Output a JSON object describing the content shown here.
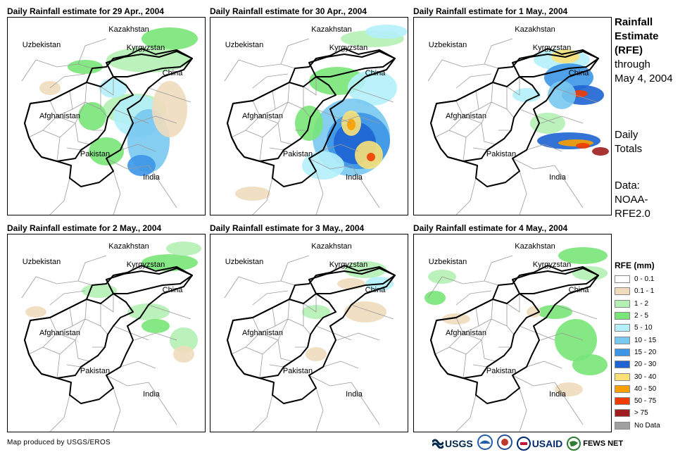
{
  "panels": [
    {
      "title": "Daily Rainfall estimate for 29 Apr., 2004"
    },
    {
      "title": "Daily Rainfall estimate for 30 Apr., 2004"
    },
    {
      "title": "Daily Rainfall estimate for 1 May., 2004"
    },
    {
      "title": "Daily Rainfall estimate for 2 May., 2004"
    },
    {
      "title": "Daily Rainfall estimate for 3 May., 2004"
    },
    {
      "title": "Daily Rainfall estimate for 4 May., 2004"
    }
  ],
  "places": {
    "kazakhstan": "Kazakhstan",
    "uzbekistan": "Uzbekistan",
    "kyrgyzstan": "Kyrgyzstan",
    "china": "China",
    "afghanistan": "Afghanistan",
    "pakistan": "Pakistan",
    "india": "India"
  },
  "side": {
    "line1": "Rainfall",
    "line2": "Estimate",
    "line3": "(RFE)",
    "line4": "through",
    "line5": "May 4, 2004",
    "daily1": "Daily",
    "daily2": "Totals",
    "data1": "Data:",
    "data2": "NOAA-",
    "data3": "RFE2.0"
  },
  "legend": {
    "title": "RFE (mm)",
    "items": [
      {
        "label": "0 - 0.1",
        "color": "#ffffff"
      },
      {
        "label": "0.1 - 1",
        "color": "#f0dcbc"
      },
      {
        "label": "1 - 2",
        "color": "#b4f0b4"
      },
      {
        "label": "2 - 5",
        "color": "#78e678"
      },
      {
        "label": "5 - 10",
        "color": "#b4f0fa"
      },
      {
        "label": "10 - 15",
        "color": "#78c8f0"
      },
      {
        "label": "15 - 20",
        "color": "#3c96e6"
      },
      {
        "label": "20 - 30",
        "color": "#1e64d2"
      },
      {
        "label": "30 - 40",
        "color": "#fae178"
      },
      {
        "label": "40 - 50",
        "color": "#faa000"
      },
      {
        "label": "50 - 75",
        "color": "#f03c00"
      },
      {
        "label": "> 75",
        "color": "#a01e1e"
      },
      {
        "label": "No Data",
        "color": "#a0a0a0"
      }
    ]
  },
  "footer": {
    "credit": "Map produced by USGS/EROS",
    "logo_usgs": "USGS",
    "logo_usaid": "USAID",
    "logo_fewsnet": "FEWS NET"
  }
}
